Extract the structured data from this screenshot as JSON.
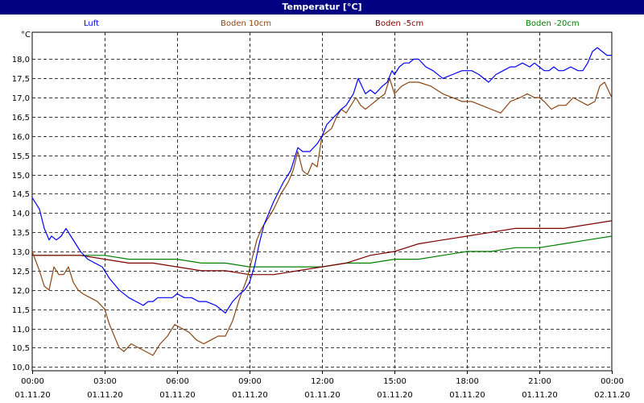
{
  "window": {
    "title": "Temperatur [°C]"
  },
  "colors": {
    "titlebar": "#000080",
    "grid": "#000000",
    "background": "#ffffff"
  },
  "chart_data": {
    "type": "line",
    "title": "Temperatur [°C]",
    "ylabel": "°C",
    "ylim": [
      9.9,
      18.7
    ],
    "xlim": [
      0,
      24
    ],
    "grid": true,
    "legend_position": "top",
    "x_ticks": [
      {
        "x": 0,
        "time": "00:00",
        "date": "01.11.20"
      },
      {
        "x": 3,
        "time": "03:00",
        "date": "01.11.20"
      },
      {
        "x": 6,
        "time": "06:00",
        "date": "01.11.20"
      },
      {
        "x": 9,
        "time": "09:00",
        "date": "01.11.20"
      },
      {
        "x": 12,
        "time": "12:00",
        "date": "01.11.20"
      },
      {
        "x": 15,
        "time": "15:00",
        "date": "01.11.20"
      },
      {
        "x": 18,
        "time": "18:00",
        "date": "01.11.20"
      },
      {
        "x": 21,
        "time": "21:00",
        "date": "01.11.20"
      },
      {
        "x": 24,
        "time": "00:00",
        "date": "02.11.20"
      }
    ],
    "y_ticks": [
      "10,0",
      "10,5",
      "11,0",
      "11,5",
      "12,0",
      "12,5",
      "13,0",
      "13,5",
      "14,0",
      "14,5",
      "15,0",
      "15,5",
      "16,0",
      "16,5",
      "17,0",
      "17,5",
      "18,0"
    ],
    "series": [
      {
        "name": "Luft",
        "color": "#0000ff",
        "x": [
          0,
          0.3,
          0.5,
          0.7,
          0.8,
          1,
          1.2,
          1.4,
          1.6,
          1.8,
          2,
          2.3,
          2.6,
          2.9,
          3.2,
          3.6,
          4,
          4.3,
          4.6,
          4.8,
          5,
          5.2,
          5.5,
          5.8,
          6,
          6.3,
          6.6,
          6.9,
          7.2,
          7.6,
          8,
          8.3,
          8.6,
          8.8,
          9,
          9.2,
          9.4,
          9.6,
          9.8,
          10,
          10.4,
          10.7,
          11,
          11.2,
          11.5,
          11.8,
          12,
          12.2,
          12.5,
          12.8,
          13,
          13.3,
          13.5,
          13.8,
          14,
          14.2,
          14.5,
          14.7,
          14.9,
          15,
          15.2,
          15.4,
          15.6,
          15.8,
          16,
          16.3,
          16.6,
          17,
          17.4,
          17.8,
          18.2,
          18.5,
          18.9,
          19.2,
          19.5,
          19.8,
          20,
          20.3,
          20.6,
          20.8,
          21,
          21.2,
          21.4,
          21.6,
          21.8,
          22,
          22.3,
          22.6,
          22.8,
          23,
          23.2,
          23.4,
          23.6,
          23.8,
          24
        ],
        "y": [
          14.4,
          14.1,
          13.6,
          13.3,
          13.4,
          13.3,
          13.4,
          13.6,
          13.4,
          13.2,
          13,
          12.8,
          12.7,
          12.6,
          12.3,
          12,
          11.8,
          11.7,
          11.6,
          11.7,
          11.7,
          11.8,
          11.8,
          11.8,
          11.9,
          11.8,
          11.8,
          11.7,
          11.7,
          11.6,
          11.4,
          11.7,
          11.9,
          12,
          12.2,
          12.6,
          13.2,
          13.7,
          14,
          14.3,
          14.8,
          15.1,
          15.7,
          15.6,
          15.6,
          15.8,
          16,
          16.3,
          16.5,
          16.7,
          16.8,
          17.1,
          17.5,
          17.1,
          17.2,
          17.1,
          17.3,
          17.4,
          17.7,
          17.6,
          17.8,
          17.9,
          17.9,
          18,
          18,
          17.8,
          17.7,
          17.5,
          17.6,
          17.7,
          17.7,
          17.6,
          17.4,
          17.6,
          17.7,
          17.8,
          17.8,
          17.9,
          17.8,
          17.9,
          17.8,
          17.7,
          17.7,
          17.8,
          17.7,
          17.7,
          17.8,
          17.7,
          17.7,
          17.9,
          18.2,
          18.3,
          18.2,
          18.1,
          18.1
        ]
      },
      {
        "name": "Boden 10cm",
        "color": "#8b4513",
        "x": [
          0,
          0.3,
          0.5,
          0.7,
          0.9,
          1.1,
          1.3,
          1.5,
          1.7,
          1.9,
          2.1,
          2.4,
          2.7,
          3,
          3.2,
          3.4,
          3.6,
          3.8,
          4.1,
          4.4,
          4.7,
          5,
          5.3,
          5.6,
          5.9,
          6.2,
          6.5,
          6.8,
          7.1,
          7.4,
          7.7,
          8,
          8.3,
          8.6,
          8.9,
          9.1,
          9.3,
          9.5,
          9.7,
          10,
          10.3,
          10.6,
          10.8,
          11,
          11.2,
          11.4,
          11.6,
          11.8,
          12,
          12.2,
          12.4,
          12.6,
          12.8,
          13,
          13.2,
          13.4,
          13.6,
          13.8,
          14,
          14.2,
          14.4,
          14.6,
          14.8,
          15,
          15.3,
          15.6,
          16,
          16.5,
          17,
          17.4,
          17.8,
          18.2,
          18.6,
          19,
          19.4,
          19.8,
          20.2,
          20.5,
          20.8,
          21,
          21.2,
          21.5,
          21.8,
          22.1,
          22.4,
          22.7,
          23,
          23.3,
          23.5,
          23.7,
          24
        ],
        "y": [
          13,
          12.5,
          12.1,
          12,
          12.6,
          12.4,
          12.4,
          12.6,
          12.2,
          12,
          11.9,
          11.8,
          11.7,
          11.5,
          11.1,
          10.8,
          10.5,
          10.4,
          10.6,
          10.5,
          10.4,
          10.3,
          10.6,
          10.8,
          11.1,
          11,
          10.9,
          10.7,
          10.6,
          10.7,
          10.8,
          10.8,
          11.2,
          11.8,
          12.3,
          12.8,
          13.3,
          13.6,
          13.8,
          14.1,
          14.5,
          14.8,
          15.1,
          15.6,
          15.1,
          15,
          15.3,
          15.2,
          16,
          16.1,
          16.2,
          16.5,
          16.7,
          16.6,
          16.8,
          17,
          16.8,
          16.7,
          16.8,
          16.9,
          17,
          17.1,
          17.5,
          17.1,
          17.3,
          17.4,
          17.4,
          17.3,
          17.1,
          17,
          16.9,
          16.9,
          16.8,
          16.7,
          16.6,
          16.9,
          17,
          17.1,
          17,
          17,
          16.9,
          16.7,
          16.8,
          16.8,
          17,
          16.9,
          16.8,
          16.9,
          17.3,
          17.4,
          17
        ]
      },
      {
        "name": "Boden -5cm",
        "color": "#800000",
        "x": [
          0,
          1,
          2,
          3,
          4,
          5,
          6,
          7,
          8,
          9,
          10,
          11,
          12,
          13,
          14,
          15,
          16,
          17,
          18,
          19,
          20,
          21,
          22,
          23,
          24
        ],
        "y": [
          12.9,
          12.9,
          12.9,
          12.8,
          12.7,
          12.7,
          12.6,
          12.5,
          12.5,
          12.4,
          12.4,
          12.5,
          12.6,
          12.7,
          12.9,
          13,
          13.2,
          13.3,
          13.4,
          13.5,
          13.6,
          13.6,
          13.6,
          13.7,
          13.8
        ]
      },
      {
        "name": "Boden -20cm",
        "color": "#008000",
        "x": [
          0,
          1,
          2,
          3,
          4,
          5,
          6,
          7,
          8,
          9,
          10,
          11,
          12,
          13,
          14,
          15,
          16,
          17,
          18,
          19,
          20,
          21,
          22,
          23,
          24
        ],
        "y": [
          12.9,
          12.9,
          12.9,
          12.9,
          12.8,
          12.8,
          12.8,
          12.7,
          12.7,
          12.6,
          12.6,
          12.6,
          12.6,
          12.7,
          12.7,
          12.8,
          12.8,
          12.9,
          13,
          13,
          13.1,
          13.1,
          13.2,
          13.3,
          13.4
        ]
      }
    ]
  }
}
